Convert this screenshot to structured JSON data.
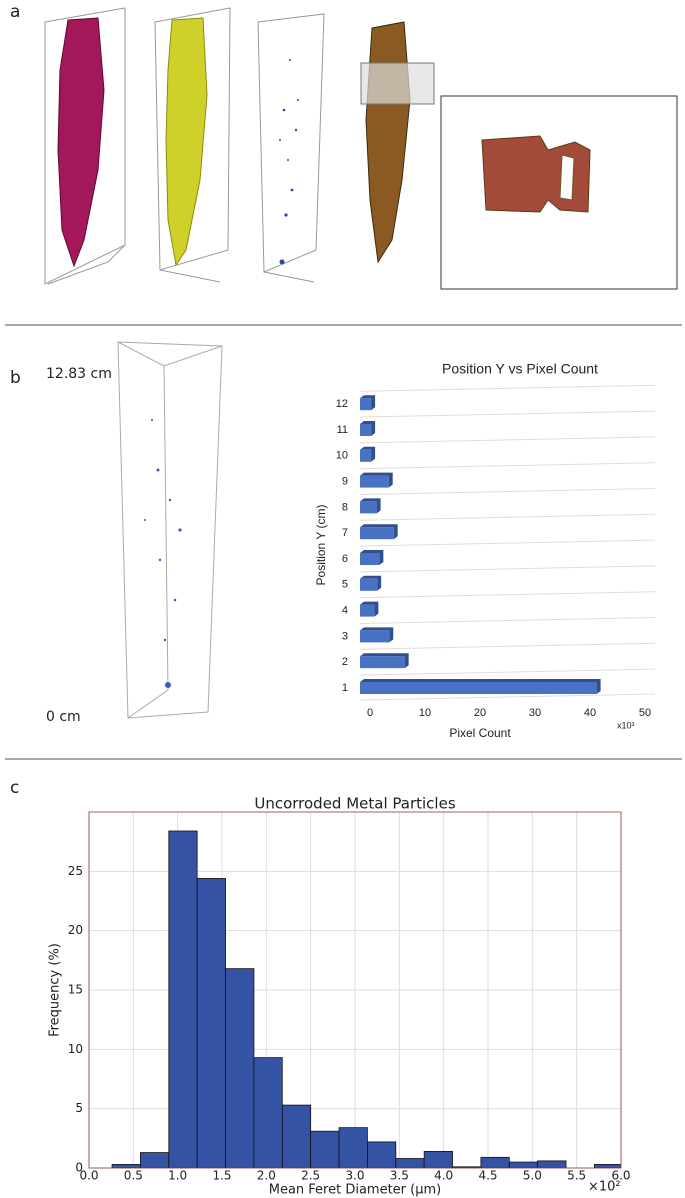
{
  "figure": {
    "panel_labels": [
      "a",
      "b",
      "c"
    ],
    "scale_top": "12.83 cm",
    "scale_bottom": "0 cm"
  },
  "chart_data": [
    {
      "type": "bar",
      "title": "Position Y vs Pixel Count",
      "x_label": "Pixel Count",
      "y_label": "Position Y (cm)",
      "x_multiplier": "x10³",
      "categories": [
        "1",
        "2",
        "3",
        "4",
        "5",
        "6",
        "7",
        "8",
        "9",
        "10",
        "11",
        "12"
      ],
      "values": [
        41.2,
        6.3,
        3.5,
        0.8,
        1.3,
        1.7,
        4.3,
        1.2,
        3.4,
        0.2,
        0.2,
        0.2
      ],
      "color": "#4a72c4",
      "xlim": [
        -2,
        50
      ],
      "xticks": [
        0,
        10,
        20,
        30,
        40,
        50
      ]
    },
    {
      "type": "histogram",
      "title": "Uncorroded Metal Particles",
      "x_label": "Mean Feret Diameter (μm)",
      "y_label": "Frequency (%)",
      "x_multiplier": "×10²",
      "bins": [
        0.26,
        0.58,
        0.9,
        1.22,
        1.54,
        1.86,
        2.18,
        2.5,
        2.82,
        3.14,
        3.46,
        3.78,
        4.1,
        4.42,
        4.74,
        5.06,
        5.38,
        5.7,
        6.02
      ],
      "values": [
        0.3,
        1.3,
        28.4,
        24.4,
        16.8,
        9.3,
        5.3,
        3.1,
        3.4,
        2.2,
        0.8,
        1.4,
        0.1,
        0.9,
        0.5,
        0.6,
        0,
        0.3
      ],
      "color": "#3553a5",
      "grid": true,
      "xlim": [
        0,
        6
      ],
      "xticks": [
        {
          "value": 0,
          "label": "0.0"
        },
        0.5,
        {
          "value": 1,
          "label": "1.0"
        },
        1.5,
        {
          "value": 2,
          "label": "2.0"
        },
        2.5,
        {
          "value": 3,
          "label": "3.0"
        },
        3.5,
        {
          "value": 4,
          "label": "4.0"
        },
        4.5,
        {
          "value": 5,
          "label": "5.0"
        },
        5.5,
        {
          "value": 6,
          "label": "6.0"
        }
      ],
      "ylim": [
        0,
        30
      ],
      "yticks": [
        0,
        5,
        10,
        15,
        20,
        25
      ]
    }
  ]
}
